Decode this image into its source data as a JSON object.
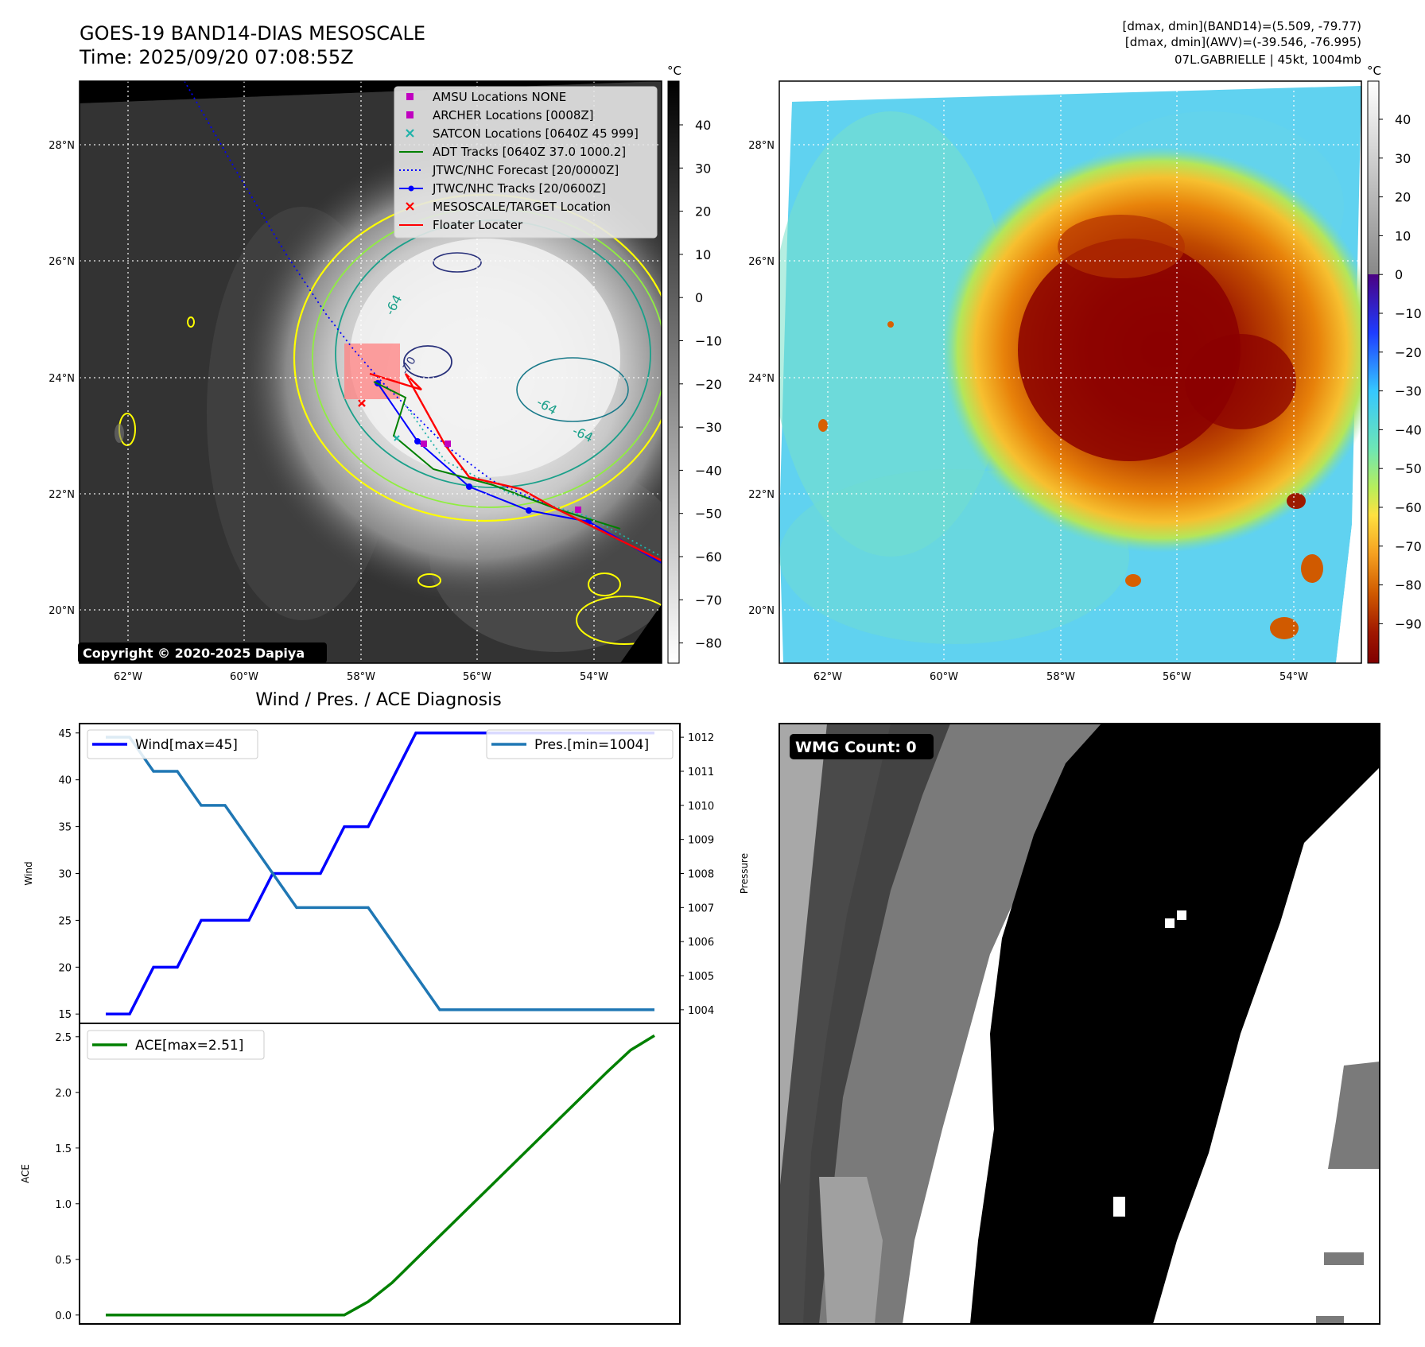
{
  "header": {
    "title_line1": "GOES-19 BAND14-DIAS MESOSCALE",
    "title_line2": "Time: 2025/09/20 07:08:55Z",
    "info_line1": "[dmax, dmin](BAND14)=(5.509, -79.77)",
    "info_line2": "[dmax, dmin](AWV)=(-39.546, -76.995)",
    "info_line3": "07L.GABRIELLE | 45kt, 1004mb"
  },
  "copyright": "Copyright © 2020-2025 Dapiya",
  "map_axes": {
    "lon_labels": [
      "62°W",
      "60°W",
      "58°W",
      "56°W",
      "54°W"
    ],
    "lat_labels": [
      "28°N",
      "26°N",
      "24°N",
      "22°N",
      "20°N"
    ]
  },
  "ir_colorbar": {
    "unit": "°C",
    "ticks": [
      "40",
      "30",
      "20",
      "10",
      "0",
      "−10",
      "−20",
      "−30",
      "−40",
      "−50",
      "−60",
      "−70",
      "−80"
    ]
  },
  "wv_colorbar": {
    "unit": "°C",
    "ticks": [
      "40",
      "30",
      "20",
      "10",
      "0",
      "−10",
      "−20",
      "−30",
      "−40",
      "−50",
      "−60",
      "−70",
      "−80",
      "−90"
    ]
  },
  "contour_labels": [
    "-64",
    "-64",
    "-64",
    "-70"
  ],
  "legend": {
    "items": [
      {
        "label": "AMSU Locations NONE",
        "color": "#c000c0",
        "marker": "square"
      },
      {
        "label": "ARCHER Locations [0008Z]",
        "color": "#c000c0",
        "marker": "square"
      },
      {
        "label": "SATCON Locations [0640Z 45 999]",
        "color": "#20b2aa",
        "marker": "x"
      },
      {
        "label": "ADT Tracks [0640Z 37.0 1000.2]",
        "color": "#008000",
        "marker": "line"
      },
      {
        "label": "JTWC/NHC Forecast [20/0000Z]",
        "color": "#0000ff",
        "marker": "dotted"
      },
      {
        "label": "JTWC/NHC Tracks [20/0600Z]",
        "color": "#0000ff",
        "marker": "line-dot"
      },
      {
        "label": "MESOSCALE/TARGET Location",
        "color": "#ff0000",
        "marker": "x"
      },
      {
        "label": "Floater Locater",
        "color": "#ff0000",
        "marker": "line"
      }
    ]
  },
  "diag_title": "Wind / Pres. / ACE Diagnosis",
  "wmg_label": "WMG Count: 0",
  "chart_data": [
    {
      "type": "line",
      "title": "Wind / Pres. / ACE Diagnosis",
      "ylabel": "Wind",
      "ylabel_right": "Pressure",
      "ylim": [
        14,
        46
      ],
      "ylim_right": [
        1003.6,
        1012.4
      ],
      "yticks": [
        15,
        20,
        25,
        30,
        35,
        40,
        45
      ],
      "yticks_right": [
        1004,
        1005,
        1006,
        1007,
        1008,
        1009,
        1010,
        1011,
        1012
      ],
      "series": [
        {
          "name": "Wind[max=45]",
          "color": "#0000ff",
          "axis": "left",
          "x": [
            0,
            1,
            2,
            3,
            4,
            5,
            6,
            7,
            8,
            9,
            10,
            11,
            12,
            13,
            14,
            15,
            16,
            17,
            18,
            19,
            20,
            21,
            22,
            23
          ],
          "values": [
            15,
            15,
            20,
            20,
            25,
            25,
            25,
            30,
            30,
            30,
            35,
            35,
            40,
            45,
            45,
            45,
            45,
            45,
            45,
            45,
            45,
            45,
            45,
            45
          ]
        },
        {
          "name": "Pres.[min=1004]",
          "color": "#1f77b4",
          "axis": "right",
          "x": [
            0,
            1,
            2,
            3,
            4,
            5,
            6,
            7,
            8,
            9,
            10,
            11,
            12,
            13,
            14,
            15,
            16,
            17,
            18,
            19,
            20,
            21,
            22,
            23
          ],
          "values": [
            1012,
            1012,
            1011,
            1011,
            1010,
            1010,
            1009,
            1008,
            1007,
            1007,
            1007,
            1007,
            1006,
            1005,
            1004,
            1004,
            1004,
            1004,
            1004,
            1004,
            1004,
            1004,
            1004,
            1004
          ]
        }
      ]
    },
    {
      "type": "line",
      "ylabel": "ACE",
      "ylim": [
        -0.08,
        2.62
      ],
      "yticks": [
        0.0,
        0.5,
        1.0,
        1.5,
        2.0,
        2.5
      ],
      "ytick_labels": [
        "0.0",
        "0.5",
        "1.0",
        "1.5",
        "2.0",
        "2.5"
      ],
      "series": [
        {
          "name": "ACE[max=2.51]",
          "color": "#008000",
          "x": [
            0,
            1,
            2,
            3,
            4,
            5,
            6,
            7,
            8,
            9,
            10,
            11,
            12,
            13,
            14,
            15,
            16,
            17,
            18,
            19,
            20,
            21,
            22,
            23
          ],
          "values": [
            0,
            0,
            0,
            0,
            0,
            0,
            0,
            0,
            0,
            0,
            0,
            0.12,
            0.29,
            0.5,
            0.71,
            0.92,
            1.13,
            1.34,
            1.55,
            1.76,
            1.97,
            2.18,
            2.38,
            2.51
          ]
        }
      ]
    }
  ]
}
